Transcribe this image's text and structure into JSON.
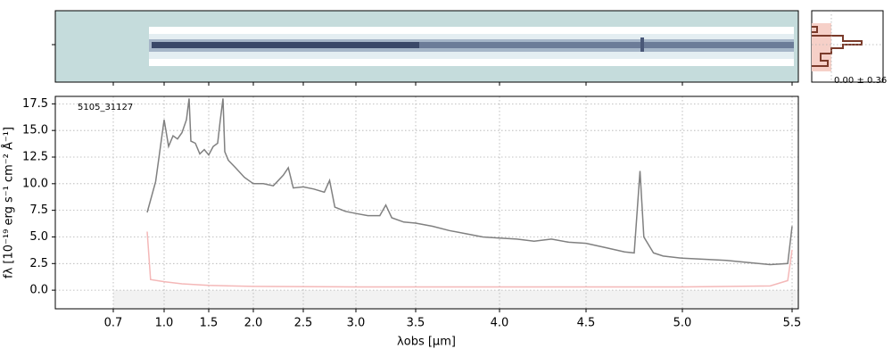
{
  "chart_data": {
    "type": "line",
    "id_label": "5105_31127",
    "stats_label": "0.00 ± 0.36",
    "xlabel": "λobs [μm]",
    "ylabel": "fλ [10⁻¹⁹ erg s⁻¹ cm⁻² Å⁻¹]",
    "xlim": [
      0.36,
      5.53
    ],
    "xticks": [
      0.7,
      {
        "value": 1,
        "label": "1.0"
      },
      1.5,
      {
        "value": 2,
        "label": "2.0"
      },
      2.5,
      {
        "value": 3,
        "label": "3.0"
      },
      3.5,
      {
        "value": 4,
        "label": "4.0"
      },
      4.5,
      {
        "value": 5,
        "label": "5.0"
      },
      5.5
    ],
    "ylim": [
      -1.75,
      18.2
    ],
    "yticks": [
      {
        "value": 0,
        "label": "0.0"
      },
      2.5,
      {
        "value": 5,
        "label": "5.0"
      },
      7.5,
      {
        "value": 10,
        "label": "10.0"
      },
      12.5,
      {
        "value": 15,
        "label": "15.0"
      },
      17.5
    ],
    "grid": true,
    "series": [
      {
        "color": "#808080",
        "x": [
          0.9,
          0.95,
          1.0,
          1.05,
          1.1,
          1.15,
          1.2,
          1.25,
          1.28,
          1.3,
          1.35,
          1.4,
          1.45,
          1.5,
          1.55,
          1.6,
          1.63,
          1.66,
          1.68,
          1.72,
          1.8,
          1.9,
          2.0,
          2.1,
          2.2,
          2.3,
          2.35,
          2.4,
          2.5,
          2.6,
          2.7,
          2.75,
          2.8,
          2.9,
          3.0,
          3.1,
          3.2,
          3.25,
          3.3,
          3.4,
          3.5,
          3.6,
          3.7,
          3.8,
          3.9,
          4.0,
          4.1,
          4.2,
          4.3,
          4.4,
          4.5,
          4.6,
          4.7,
          4.75,
          4.78,
          4.8,
          4.85,
          4.9,
          5.0,
          5.1,
          5.2,
          5.3,
          5.4,
          5.48,
          5.5
        ],
        "values": [
          7.3,
          10.2,
          16,
          13.5,
          14.5,
          14.2,
          14.8,
          16,
          18,
          14,
          13.8,
          12.8,
          13.2,
          12.7,
          13.5,
          13.8,
          16,
          18,
          13.0,
          12.2,
          11.5,
          10.6,
          10.0,
          10.0,
          9.8,
          10.8,
          11.5,
          9.6,
          9.7,
          9.5,
          9.2,
          10.3,
          7.8,
          7.4,
          7.2,
          7.0,
          7.0,
          8.0,
          6.8,
          6.4,
          6.3,
          6.0,
          5.6,
          5.3,
          5.0,
          4.9,
          4.8,
          4.6,
          4.8,
          4.5,
          4.4,
          4.0,
          3.6,
          3.5,
          11.2,
          5.0,
          3.5,
          3.2,
          3.0,
          2.9,
          2.8,
          2.6,
          2.4,
          2.5,
          6.0
        ]
      },
      {
        "color": "#f4b8b8",
        "x": [
          0.9,
          0.92,
          1.0,
          1.2,
          1.5,
          2.0,
          3.0,
          4.0,
          5.0,
          5.4,
          5.48,
          5.5
        ],
        "values": [
          5.5,
          1.0,
          0.8,
          0.6,
          0.45,
          0.35,
          0.3,
          0.3,
          0.3,
          0.4,
          0.9,
          3.8
        ]
      }
    ]
  }
}
